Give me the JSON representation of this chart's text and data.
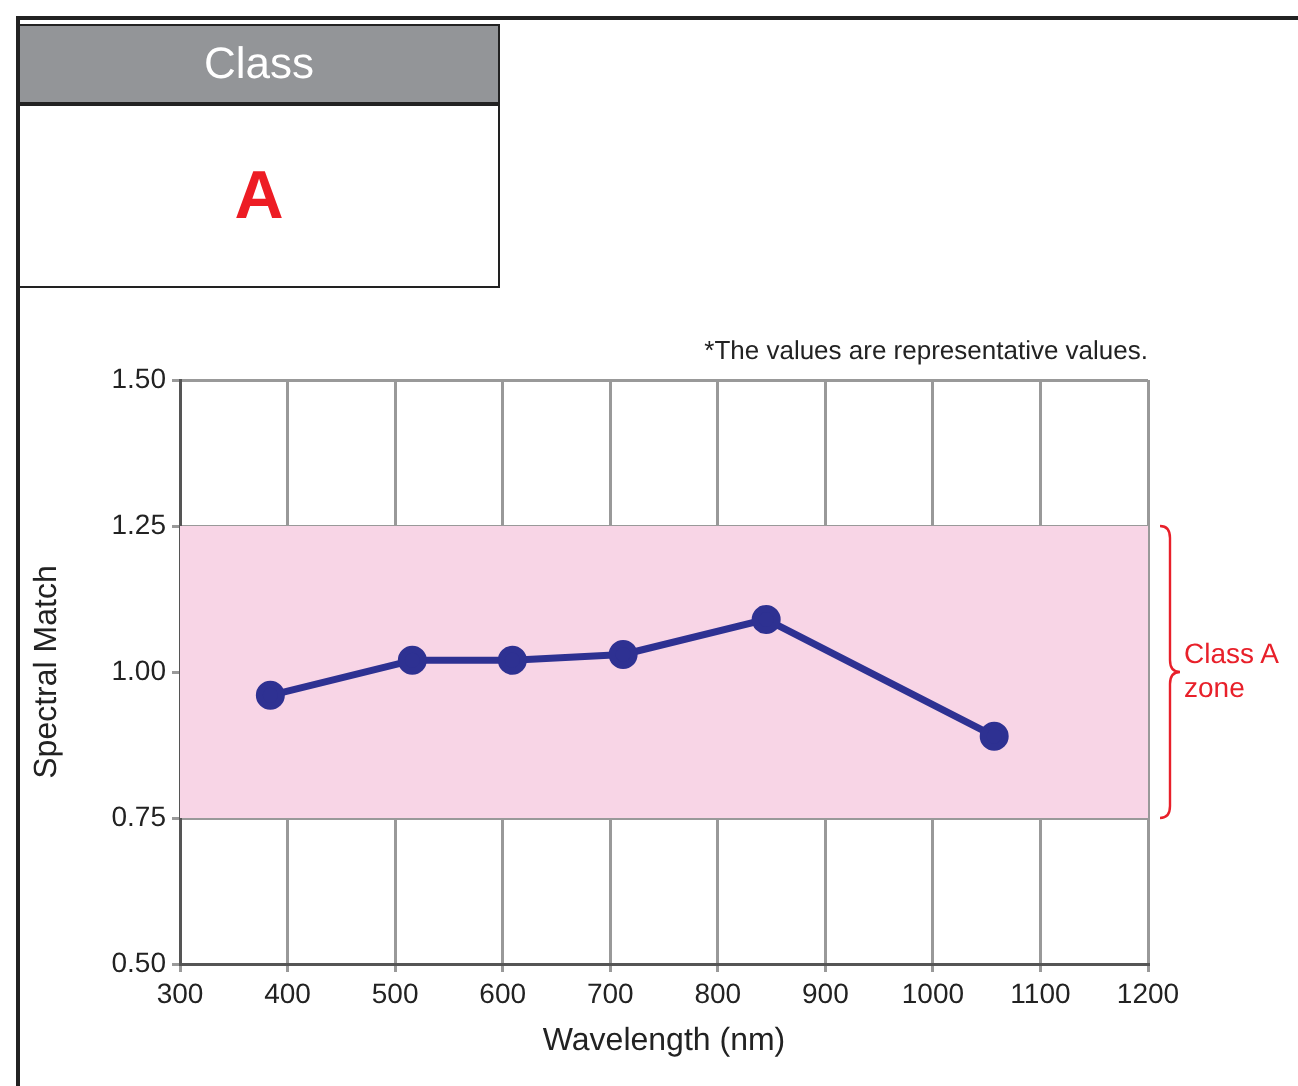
{
  "chart_data": {
    "type": "line",
    "title": "Class",
    "subtitle": "A",
    "xlabel": "Wavelength (nm)",
    "ylabel": "Spectral Match",
    "annotations": [
      "*The values are representative values."
    ],
    "x": [
      384,
      516,
      609,
      712,
      845,
      1057
    ],
    "series": [
      {
        "color": "#2e3192",
        "values": [
          0.96,
          1.02,
          1.02,
          1.03,
          1.09,
          0.89
        ]
      }
    ],
    "xlim": [
      300,
      1200
    ],
    "xticks": [
      300,
      400,
      500,
      600,
      700,
      800,
      900,
      1000,
      1100,
      1200
    ],
    "ylim": [
      0.5,
      1.5
    ],
    "yticks": [
      {
        "value": 0.5,
        "label": "0.50"
      },
      {
        "value": 0.75,
        "label": "0.75"
      },
      {
        "value": 1.0,
        "label": "1.00"
      },
      {
        "value": 1.25,
        "label": "1.25"
      },
      {
        "value": 1.5,
        "label": "1.50"
      }
    ],
    "bands": [
      {
        "axis": "y",
        "from": 0.75,
        "to": 1.25,
        "label": "Class A zone",
        "color": "#f8d5e6"
      }
    ],
    "grid": true,
    "legend": false,
    "marker": "circle",
    "line_style": "solid"
  }
}
